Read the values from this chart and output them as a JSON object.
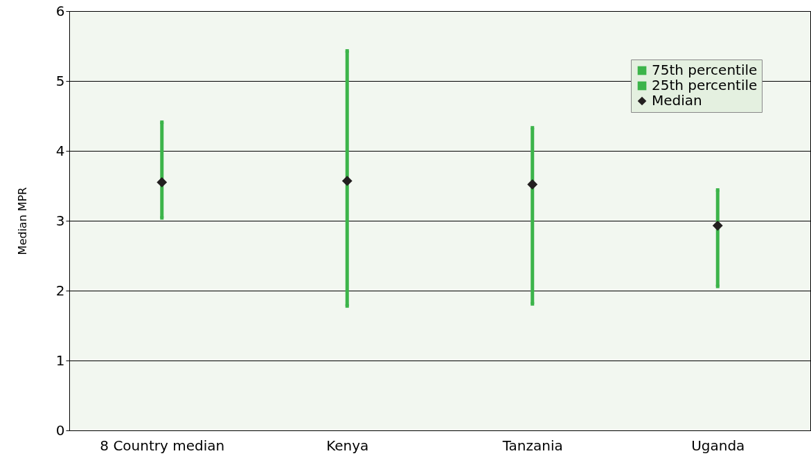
{
  "chart_data": {
    "type": "scatter",
    "ylabel": "Median MPR",
    "categories": [
      "8 Country median",
      "Kenya",
      "Tanzania",
      "Uganda"
    ],
    "series": [
      {
        "name": "75th percentile",
        "color": "#3cb44a",
        "marker": "square",
        "values": [
          4.41,
          5.43,
          4.33,
          3.44
        ]
      },
      {
        "name": "25th percentile",
        "color": "#3cb44a",
        "marker": "square",
        "values": [
          3.04,
          1.78,
          1.81,
          2.06
        ]
      },
      {
        "name": "Median",
        "color": "#231f20",
        "marker": "diamond",
        "values": [
          3.55,
          3.57,
          3.52,
          2.93
        ]
      }
    ],
    "ylim": [
      0,
      6
    ],
    "yticks": [
      0,
      1,
      2,
      3,
      4,
      5,
      6
    ],
    "grid": "y",
    "legend": "top right"
  }
}
